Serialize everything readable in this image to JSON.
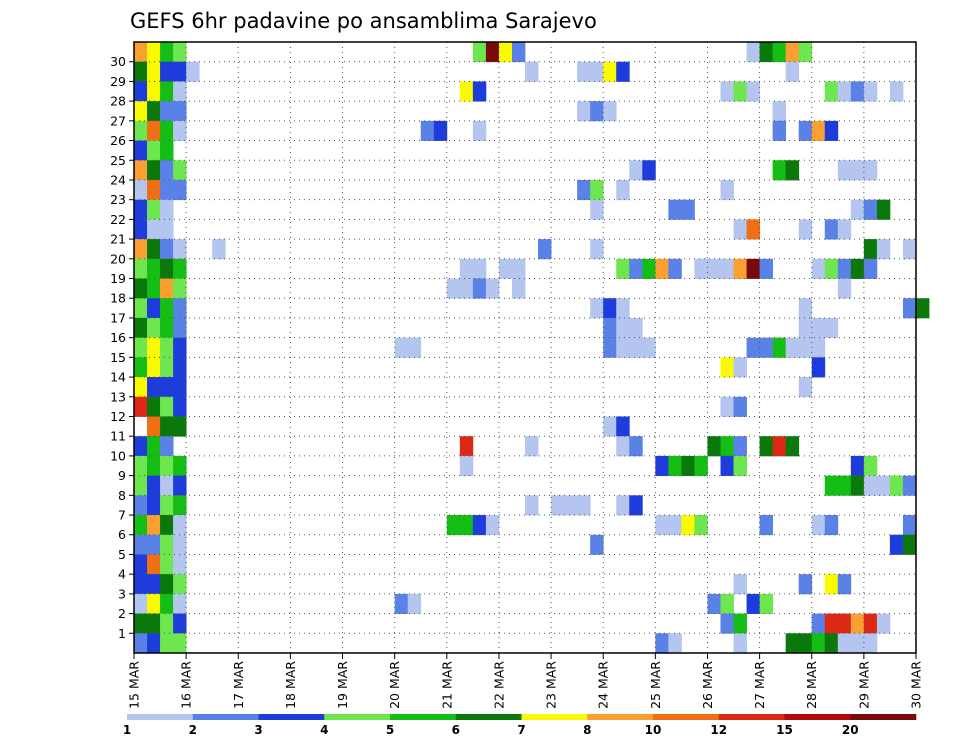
{
  "chart_data": {
    "type": "heatmap",
    "title": "GEFS 6hr padavine po ansamblima Sarajevo",
    "xlabel": "",
    "ylabel": "",
    "x_tick_labels": [
      "15 MAR",
      "16 MAR",
      "17 MAR",
      "18 MAR",
      "19 MAR",
      "20 MAR",
      "21 MAR",
      "22 MAR",
      "23 MAR",
      "24 MAR",
      "25 MAR",
      "26 MAR",
      "27 MAR",
      "28 MAR",
      "29 MAR",
      "30 MAR"
    ],
    "y_tick_labels": [
      "1",
      "2",
      "3",
      "4",
      "5",
      "6",
      "7",
      "8",
      "9",
      "10",
      "11",
      "12",
      "13",
      "14",
      "15",
      "16",
      "17",
      "18",
      "19",
      "20",
      "21",
      "22",
      "23",
      "24",
      "25",
      "26",
      "27",
      "28",
      "29",
      "30"
    ],
    "xlim_days": [
      15,
      30
    ],
    "time_step_hours": 6,
    "grid": "dotted",
    "legend": {
      "placement": "bottom",
      "levels": [
        "1",
        "2",
        "3",
        "4",
        "5",
        "6",
        "7",
        "8",
        "10",
        "12",
        "15",
        "20"
      ],
      "colors": [
        "#b4c6f0",
        "#5a82e6",
        "#1e3cdc",
        "#6ee650",
        "#14be14",
        "#0a780a",
        "#fafa00",
        "#faa032",
        "#f06e14",
        "#dc2814",
        "#b40a0a",
        "#780a0a"
      ]
    },
    "cell_colors": [
      "#b4c6f0",
      "#5a82e6",
      "#1e3cdc",
      "#6ee650",
      "#14be14",
      "#0a780a",
      "#fafa00",
      "#faa032",
      "#f06e14",
      "#dc2814",
      "#b40a0a",
      "#780a0a"
    ],
    "cells": [
      [
        30,
        0,
        8
      ],
      [
        30,
        1,
        7
      ],
      [
        30,
        2,
        5
      ],
      [
        30,
        3,
        4
      ],
      [
        30,
        26,
        4
      ],
      [
        30,
        27,
        12
      ],
      [
        30,
        28,
        7
      ],
      [
        30,
        29,
        2
      ],
      [
        30,
        47,
        1
      ],
      [
        30,
        48,
        6
      ],
      [
        30,
        49,
        5
      ],
      [
        30,
        50,
        8
      ],
      [
        30,
        51,
        4
      ],
      [
        29,
        0,
        6
      ],
      [
        29,
        1,
        7
      ],
      [
        29,
        2,
        3
      ],
      [
        29,
        3,
        3
      ],
      [
        29,
        4,
        1
      ],
      [
        29,
        30,
        1
      ],
      [
        29,
        34,
        1
      ],
      [
        29,
        35,
        1
      ],
      [
        29,
        36,
        7
      ],
      [
        29,
        37,
        3
      ],
      [
        29,
        50,
        1
      ],
      [
        28,
        0,
        3
      ],
      [
        28,
        1,
        7
      ],
      [
        28,
        2,
        5
      ],
      [
        28,
        3,
        1
      ],
      [
        28,
        25,
        7
      ],
      [
        28,
        26,
        3
      ],
      [
        28,
        45,
        1
      ],
      [
        28,
        46,
        4
      ],
      [
        28,
        47,
        1
      ],
      [
        28,
        53,
        4
      ],
      [
        28,
        54,
        1
      ],
      [
        28,
        55,
        2
      ],
      [
        28,
        56,
        1
      ],
      [
        28,
        58,
        1
      ],
      [
        27,
        0,
        7
      ],
      [
        27,
        1,
        6
      ],
      [
        27,
        2,
        2
      ],
      [
        27,
        3,
        2
      ],
      [
        27,
        34,
        1
      ],
      [
        27,
        35,
        2
      ],
      [
        27,
        36,
        1
      ],
      [
        27,
        49,
        1
      ],
      [
        26,
        0,
        4
      ],
      [
        26,
        1,
        9
      ],
      [
        26,
        2,
        5
      ],
      [
        26,
        3,
        1
      ],
      [
        26,
        22,
        2
      ],
      [
        26,
        23,
        3
      ],
      [
        26,
        26,
        1
      ],
      [
        26,
        49,
        2
      ],
      [
        26,
        51,
        2
      ],
      [
        26,
        52,
        8
      ],
      [
        26,
        53,
        3
      ],
      [
        25,
        0,
        3
      ],
      [
        25,
        1,
        4
      ],
      [
        25,
        2,
        5
      ],
      [
        24,
        0,
        8
      ],
      [
        24,
        1,
        6
      ],
      [
        24,
        2,
        2
      ],
      [
        24,
        3,
        4
      ],
      [
        24,
        38,
        1
      ],
      [
        24,
        39,
        3
      ],
      [
        24,
        49,
        5
      ],
      [
        24,
        50,
        6
      ],
      [
        24,
        54,
        1
      ],
      [
        24,
        55,
        1
      ],
      [
        24,
        56,
        1
      ],
      [
        23,
        0,
        1
      ],
      [
        23,
        1,
        9
      ],
      [
        23,
        2,
        2
      ],
      [
        23,
        3,
        2
      ],
      [
        23,
        34,
        2
      ],
      [
        23,
        35,
        4
      ],
      [
        23,
        37,
        1
      ],
      [
        23,
        45,
        1
      ],
      [
        22,
        0,
        3
      ],
      [
        22,
        1,
        4
      ],
      [
        22,
        2,
        1
      ],
      [
        22,
        35,
        1
      ],
      [
        22,
        41,
        2
      ],
      [
        22,
        42,
        2
      ],
      [
        22,
        55,
        1
      ],
      [
        22,
        56,
        2
      ],
      [
        22,
        57,
        6
      ],
      [
        21,
        0,
        3
      ],
      [
        21,
        1,
        1
      ],
      [
        21,
        2,
        1
      ],
      [
        21,
        46,
        1
      ],
      [
        21,
        47,
        9
      ],
      [
        21,
        51,
        1
      ],
      [
        21,
        53,
        2
      ],
      [
        21,
        54,
        1
      ],
      [
        20,
        0,
        8
      ],
      [
        20,
        1,
        6
      ],
      [
        20,
        2,
        2
      ],
      [
        20,
        3,
        1
      ],
      [
        20,
        6,
        1
      ],
      [
        20,
        31,
        2
      ],
      [
        20,
        35,
        1
      ],
      [
        20,
        56,
        6
      ],
      [
        20,
        57,
        1
      ],
      [
        20,
        59,
        1
      ],
      [
        19,
        0,
        4
      ],
      [
        19,
        1,
        5
      ],
      [
        19,
        2,
        6
      ],
      [
        19,
        3,
        5
      ],
      [
        19,
        25,
        1
      ],
      [
        19,
        26,
        1
      ],
      [
        19,
        28,
        1
      ],
      [
        19,
        29,
        1
      ],
      [
        19,
        37,
        4
      ],
      [
        19,
        38,
        2
      ],
      [
        19,
        39,
        5
      ],
      [
        19,
        40,
        8
      ],
      [
        19,
        41,
        2
      ],
      [
        19,
        43,
        1
      ],
      [
        19,
        44,
        1
      ],
      [
        19,
        45,
        1
      ],
      [
        19,
        46,
        8
      ],
      [
        19,
        47,
        12
      ],
      [
        19,
        48,
        2
      ],
      [
        19,
        52,
        1
      ],
      [
        19,
        53,
        4
      ],
      [
        19,
        54,
        2
      ],
      [
        19,
        55,
        6
      ],
      [
        19,
        56,
        2
      ],
      [
        18,
        0,
        6
      ],
      [
        18,
        1,
        5
      ],
      [
        18,
        2,
        8
      ],
      [
        18,
        3,
        4
      ],
      [
        18,
        24,
        1
      ],
      [
        18,
        25,
        1
      ],
      [
        18,
        26,
        2
      ],
      [
        18,
        27,
        1
      ],
      [
        18,
        29,
        1
      ],
      [
        18,
        54,
        1
      ],
      [
        17,
        0,
        4
      ],
      [
        17,
        1,
        3
      ],
      [
        17,
        2,
        5
      ],
      [
        17,
        3,
        2
      ],
      [
        17,
        35,
        1
      ],
      [
        17,
        36,
        3
      ],
      [
        17,
        37,
        1
      ],
      [
        17,
        51,
        1
      ],
      [
        17,
        59,
        2
      ],
      [
        17,
        60,
        6
      ],
      [
        16,
        0,
        6
      ],
      [
        16,
        1,
        4
      ],
      [
        16,
        2,
        5
      ],
      [
        16,
        3,
        2
      ],
      [
        16,
        36,
        2
      ],
      [
        16,
        37,
        1
      ],
      [
        16,
        38,
        1
      ],
      [
        16,
        51,
        1
      ],
      [
        16,
        52,
        1
      ],
      [
        16,
        53,
        1
      ],
      [
        15,
        0,
        4
      ],
      [
        15,
        1,
        7
      ],
      [
        15,
        2,
        4
      ],
      [
        15,
        3,
        3
      ],
      [
        15,
        20,
        1
      ],
      [
        15,
        21,
        1
      ],
      [
        15,
        36,
        2
      ],
      [
        15,
        37,
        1
      ],
      [
        15,
        38,
        1
      ],
      [
        15,
        39,
        1
      ],
      [
        15,
        47,
        2
      ],
      [
        15,
        48,
        2
      ],
      [
        15,
        49,
        5
      ],
      [
        15,
        50,
        1
      ],
      [
        15,
        51,
        1
      ],
      [
        15,
        52,
        1
      ],
      [
        14,
        0,
        5
      ],
      [
        14,
        1,
        7
      ],
      [
        14,
        2,
        4
      ],
      [
        14,
        3,
        3
      ],
      [
        14,
        45,
        7
      ],
      [
        14,
        46,
        1
      ],
      [
        14,
        52,
        3
      ],
      [
        13,
        0,
        7
      ],
      [
        13,
        1,
        3
      ],
      [
        13,
        2,
        3
      ],
      [
        13,
        3,
        3
      ],
      [
        13,
        51,
        1
      ],
      [
        12,
        0,
        10
      ],
      [
        12,
        1,
        6
      ],
      [
        12,
        2,
        4
      ],
      [
        12,
        3,
        3
      ],
      [
        12,
        45,
        1
      ],
      [
        12,
        46,
        2
      ],
      [
        11,
        1,
        9
      ],
      [
        11,
        2,
        6
      ],
      [
        11,
        3,
        6
      ],
      [
        11,
        36,
        1
      ],
      [
        11,
        37,
        3
      ],
      [
        10,
        0,
        3
      ],
      [
        10,
        1,
        5
      ],
      [
        10,
        2,
        2
      ],
      [
        10,
        25,
        10
      ],
      [
        10,
        30,
        1
      ],
      [
        10,
        37,
        1
      ],
      [
        10,
        38,
        2
      ],
      [
        10,
        44,
        6
      ],
      [
        10,
        45,
        5
      ],
      [
        10,
        46,
        2
      ],
      [
        10,
        48,
        6
      ],
      [
        10,
        49,
        10
      ],
      [
        10,
        50,
        6
      ],
      [
        9,
        0,
        4
      ],
      [
        9,
        1,
        5
      ],
      [
        9,
        2,
        4
      ],
      [
        9,
        3,
        5
      ],
      [
        9,
        25,
        1
      ],
      [
        9,
        40,
        3
      ],
      [
        9,
        41,
        5
      ],
      [
        9,
        42,
        6
      ],
      [
        9,
        43,
        5
      ],
      [
        9,
        45,
        3
      ],
      [
        9,
        46,
        4
      ],
      [
        9,
        55,
        3
      ],
      [
        9,
        56,
        4
      ],
      [
        8,
        0,
        4
      ],
      [
        8,
        1,
        3
      ],
      [
        8,
        2,
        1
      ],
      [
        8,
        3,
        3
      ],
      [
        8,
        53,
        5
      ],
      [
        8,
        54,
        5
      ],
      [
        8,
        55,
        6
      ],
      [
        8,
        56,
        1
      ],
      [
        8,
        57,
        1
      ],
      [
        8,
        58,
        4
      ],
      [
        8,
        59,
        2
      ],
      [
        7,
        0,
        2
      ],
      [
        7,
        1,
        3
      ],
      [
        7,
        2,
        4
      ],
      [
        7,
        3,
        5
      ],
      [
        7,
        30,
        1
      ],
      [
        7,
        32,
        1
      ],
      [
        7,
        33,
        1
      ],
      [
        7,
        34,
        1
      ],
      [
        7,
        37,
        1
      ],
      [
        7,
        38,
        3
      ],
      [
        6,
        0,
        5
      ],
      [
        6,
        1,
        8
      ],
      [
        6,
        2,
        6
      ],
      [
        6,
        3,
        1
      ],
      [
        6,
        24,
        5
      ],
      [
        6,
        25,
        5
      ],
      [
        6,
        26,
        3
      ],
      [
        6,
        27,
        1
      ],
      [
        6,
        40,
        1
      ],
      [
        6,
        41,
        1
      ],
      [
        6,
        42,
        7
      ],
      [
        6,
        43,
        4
      ],
      [
        6,
        48,
        2
      ],
      [
        6,
        52,
        1
      ],
      [
        6,
        53,
        2
      ],
      [
        6,
        59,
        2
      ],
      [
        5,
        0,
        2
      ],
      [
        5,
        1,
        2
      ],
      [
        5,
        2,
        4
      ],
      [
        5,
        3,
        1
      ],
      [
        5,
        35,
        2
      ],
      [
        5,
        58,
        3
      ],
      [
        5,
        59,
        6
      ],
      [
        4,
        0,
        3
      ],
      [
        4,
        1,
        9
      ],
      [
        4,
        2,
        4
      ],
      [
        4,
        3,
        1
      ],
      [
        3,
        0,
        3
      ],
      [
        3,
        1,
        3
      ],
      [
        3,
        2,
        6
      ],
      [
        3,
        3,
        4
      ],
      [
        3,
        46,
        1
      ],
      [
        3,
        51,
        2
      ],
      [
        3,
        53,
        7
      ],
      [
        3,
        54,
        2
      ],
      [
        2,
        0,
        1
      ],
      [
        2,
        1,
        7
      ],
      [
        2,
        2,
        5
      ],
      [
        2,
        3,
        1
      ],
      [
        2,
        20,
        2
      ],
      [
        2,
        21,
        1
      ],
      [
        2,
        44,
        2
      ],
      [
        2,
        45,
        4
      ],
      [
        2,
        47,
        3
      ],
      [
        2,
        48,
        4
      ],
      [
        1,
        0,
        6
      ],
      [
        1,
        1,
        6
      ],
      [
        1,
        2,
        4
      ],
      [
        1,
        3,
        3
      ],
      [
        1,
        45,
        2
      ],
      [
        1,
        46,
        5
      ],
      [
        1,
        52,
        2
      ],
      [
        1,
        53,
        10
      ],
      [
        1,
        54,
        10
      ],
      [
        1,
        55,
        8
      ],
      [
        1,
        56,
        10
      ],
      [
        1,
        57,
        1
      ],
      [
        0,
        0,
        2
      ],
      [
        0,
        1,
        3
      ],
      [
        0,
        2,
        4
      ],
      [
        0,
        3,
        4
      ],
      [
        0,
        40,
        2
      ],
      [
        0,
        41,
        1
      ],
      [
        0,
        46,
        1
      ],
      [
        0,
        50,
        6
      ],
      [
        0,
        51,
        6
      ],
      [
        0,
        52,
        5
      ],
      [
        0,
        53,
        6
      ],
      [
        0,
        54,
        1
      ],
      [
        0,
        55,
        1
      ],
      [
        0,
        56,
        1
      ]
    ]
  }
}
